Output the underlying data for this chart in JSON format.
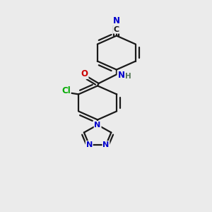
{
  "bg_color": "#ebebeb",
  "bond_color": "#1a1a1a",
  "bond_width": 1.6,
  "atom_colors": {
    "N": "#0000cc",
    "O": "#cc0000",
    "Cl": "#00aa00",
    "C": "#1a1a1a",
    "H": "#557755"
  },
  "font_size": 8.5,
  "xlim": [
    0,
    10
  ],
  "ylim": [
    0,
    13
  ]
}
